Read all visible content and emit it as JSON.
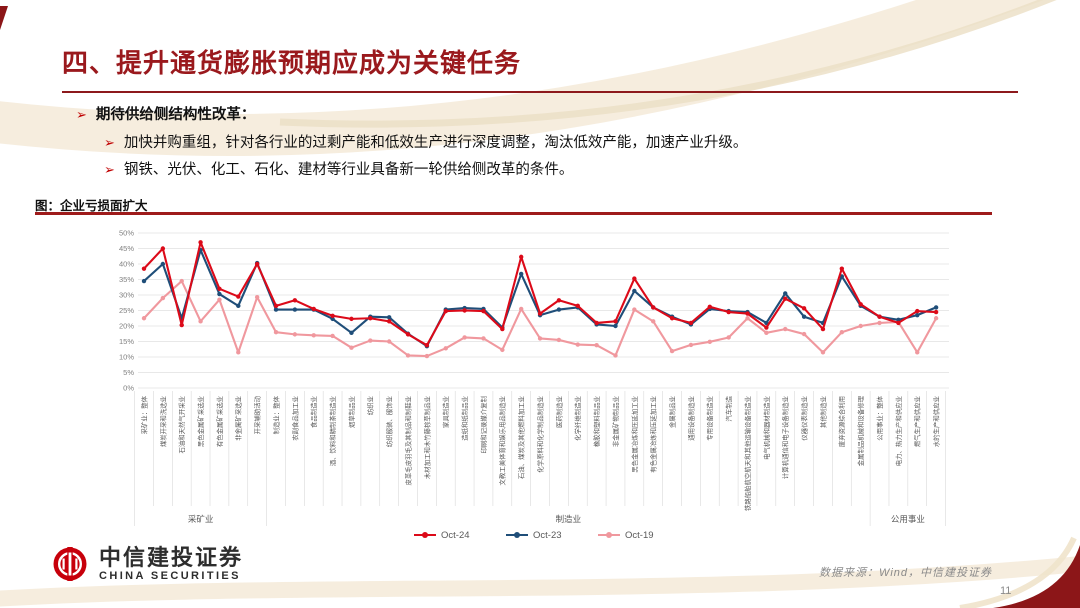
{
  "slide": {
    "title": "四、提升通货膨胀预期应成为关键任务",
    "page_number": "11"
  },
  "icons": {
    "bullet_arrow": "➢"
  },
  "bullets": {
    "level1": "期待供给侧结构性改革：",
    "level2": [
      "加快并购重组，针对各行业的过剩产能和低效生产进行深度调整，淘汰低效产能，加速产业升级。",
      "钢铁、光伏、化工、石化、建材等行业具备新一轮供给侧改革的条件。"
    ]
  },
  "figure": {
    "caption": "图：企业亏损面扩大"
  },
  "chart_data": {
    "type": "line",
    "title": "企业亏损面扩大",
    "xlabel": "",
    "ylabel": "",
    "ylim": [
      0,
      50
    ],
    "ytick_step": 5,
    "ytick_suffix": "%",
    "grid": true,
    "legend_position": "bottom",
    "colors": {
      "grid": "#e0e0e0",
      "axis_text": "#808080",
      "category_text": "#595959",
      "separator": "#d9d9d9"
    },
    "categories": [
      "采矿业：整体",
      "煤炭开采和洗选业",
      "石油和天然气开采业",
      "黑色金属矿采选业",
      "有色金属矿采选业",
      "非金属矿采选业",
      "开采辅助活动",
      "制造业：整体",
      "农副食品加工业",
      "食品制造业",
      "酒、饮料和精制茶制造业",
      "烟草制品业",
      "纺织业",
      "纺织服装、服饰业",
      "皮革毛皮羽毛及其制品和制鞋业",
      "木材加工和木竹藤棕草制品业",
      "家具制造业",
      "造纸和纸制品业",
      "印刷和记录媒介复制",
      "文教工美体育和娱乐用品制造业",
      "石油、煤炭及其他燃料加工业",
      "化学原料和化学制品制造业",
      "医药制造业",
      "化学纤维制造业",
      "橡胶和塑料制品业",
      "非金属矿物制品业",
      "黑色金属冶炼和压延加工业",
      "有色金属冶炼和压延加工业",
      "金属制品业",
      "通用设备制造业",
      "专用设备制造业",
      "汽车制造",
      "铁路船舶航空航天和其他运输设备制造业",
      "电气机械和器材制造业",
      "计算机通信和电子设备制造业",
      "仪器仪表制造业",
      "其他制造业",
      "废弃资源综合利用",
      "金属制品机械和设备修理",
      "公用事业：整体",
      "电力、热力生产和供应业",
      "燃气生产和供应业",
      "水的生产和供应业"
    ],
    "groups": [
      {
        "label": "采矿业",
        "from": 0,
        "to": 6
      },
      {
        "label": "制造业",
        "from": 7,
        "to": 38
      },
      {
        "label": "公用事业",
        "from": 39,
        "to": 42
      }
    ],
    "series": [
      {
        "name": "Oct-19",
        "color": "#f0989e",
        "values": [
          22.5,
          29.0,
          34.5,
          21.5,
          28.5,
          11.5,
          29.3,
          18.0,
          17.3,
          17.0,
          16.8,
          13.0,
          15.3,
          15.0,
          10.5,
          10.3,
          12.8,
          16.3,
          16.0,
          12.3,
          25.5,
          16.0,
          15.5,
          14.0,
          13.8,
          10.5,
          25.3,
          21.5,
          11.9,
          13.9,
          14.9,
          16.3,
          22.5,
          17.8,
          19.0,
          17.4,
          11.5,
          18.0,
          20.0,
          21.0,
          21.3,
          11.5,
          22.5
        ]
      },
      {
        "name": "Oct-23",
        "color": "#1f4e79",
        "values": [
          34.5,
          40.0,
          22.5,
          44.5,
          30.3,
          26.5,
          40.3,
          25.3,
          25.3,
          25.3,
          22.3,
          17.8,
          23.0,
          22.8,
          17.5,
          13.5,
          25.3,
          25.8,
          25.5,
          19.5,
          36.8,
          23.5,
          25.3,
          26.0,
          20.5,
          20.0,
          31.3,
          26.0,
          23.0,
          20.5,
          25.5,
          24.8,
          24.5,
          21.0,
          30.5,
          23.0,
          21.0,
          36.0,
          26.5,
          23.0,
          22.0,
          23.5,
          26.0
        ]
      },
      {
        "name": "Oct-24",
        "color": "#dc0a19",
        "values": [
          38.5,
          45.0,
          20.3,
          47.0,
          32.0,
          29.5,
          40.0,
          26.5,
          28.3,
          25.5,
          23.3,
          22.3,
          22.5,
          21.5,
          17.3,
          13.8,
          24.8,
          25.0,
          24.8,
          19.0,
          42.3,
          24.0,
          28.3,
          26.5,
          21.0,
          21.5,
          35.3,
          26.0,
          22.5,
          21.0,
          26.2,
          24.5,
          24.0,
          19.5,
          28.8,
          25.7,
          19.0,
          38.5,
          27.0,
          23.0,
          21.0,
          24.8,
          24.5
        ]
      }
    ],
    "legend_order": [
      "Oct-24",
      "Oct-23",
      "Oct-19"
    ]
  },
  "footer": {
    "logo_cn": "中信建投证券",
    "logo_en": "CHINA SECURITIES",
    "source": "数据来源：Wind，中信建投证券"
  }
}
